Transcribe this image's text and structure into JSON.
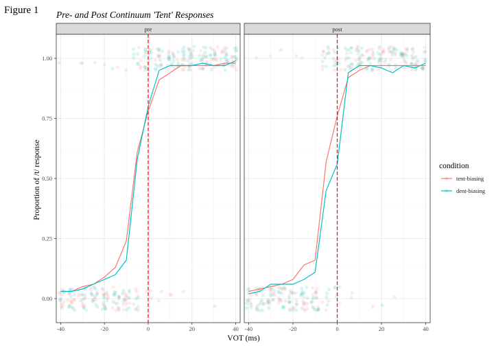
{
  "figure_label": "Figure 1",
  "chart_data": {
    "type": "line",
    "title": "Pre- and Post Continuum 'Tent' Responses",
    "xlabel": "VOT (ms)",
    "ylabel": "Proportion of /t/ response",
    "xlim": [
      -42,
      42
    ],
    "ylim": [
      -0.1,
      1.1
    ],
    "x_ticks": [
      -40,
      -20,
      0,
      20,
      40
    ],
    "x_tick_labels": [
      "-40",
      "-20",
      "0",
      "20",
      "40"
    ],
    "y_ticks": [
      0,
      0.25,
      0.5,
      0.75,
      1
    ],
    "y_tick_labels": [
      "0.00",
      "0.25",
      "0.50",
      "0.75",
      "1.00"
    ],
    "reference_line": {
      "x": 0,
      "color": "#ff0000",
      "style": "dashed"
    },
    "grid": true,
    "legend": {
      "title": "condition",
      "position": "right",
      "entries": [
        {
          "label": "tent-biasing",
          "color": "#F8766D"
        },
        {
          "label": "dent-biasing",
          "color": "#00BFC4"
        }
      ]
    },
    "point_alpha": 0.15,
    "panels": [
      {
        "label": "pre",
        "x": [
          -40,
          -35,
          -30,
          -25,
          -20,
          -15,
          -10,
          -5,
          0,
          5,
          10,
          15,
          20,
          25,
          30,
          35,
          40
        ],
        "series": [
          {
            "name": "tent-biasing",
            "color": "#F8766D",
            "values": [
              0.03,
              0.03,
              0.05,
              0.06,
              0.09,
              0.13,
              0.24,
              0.61,
              0.78,
              0.91,
              0.94,
              0.97,
              0.97,
              0.97,
              0.97,
              0.98,
              0.98
            ]
          },
          {
            "name": "dent-biasing",
            "color": "#00BFC4",
            "values": [
              0.03,
              0.03,
              0.04,
              0.06,
              0.08,
              0.1,
              0.16,
              0.58,
              0.8,
              0.95,
              0.97,
              0.97,
              0.97,
              0.98,
              0.97,
              0.97,
              0.99
            ]
          }
        ]
      },
      {
        "label": "post",
        "x": [
          -40,
          -35,
          -30,
          -25,
          -20,
          -15,
          -10,
          -5,
          0,
          5,
          10,
          15,
          20,
          25,
          30,
          35,
          40
        ],
        "series": [
          {
            "name": "tent-biasing",
            "color": "#F8766D",
            "values": [
              0.03,
              0.04,
              0.05,
              0.06,
              0.08,
              0.14,
              0.16,
              0.57,
              0.76,
              0.92,
              0.95,
              0.97,
              0.97,
              0.97,
              0.97,
              0.97,
              0.97
            ]
          },
          {
            "name": "dent-biasing",
            "color": "#00BFC4",
            "values": [
              0.02,
              0.03,
              0.06,
              0.06,
              0.06,
              0.08,
              0.11,
              0.45,
              0.56,
              0.94,
              0.97,
              0.97,
              0.96,
              0.94,
              0.97,
              0.96,
              0.98
            ]
          }
        ]
      }
    ]
  }
}
